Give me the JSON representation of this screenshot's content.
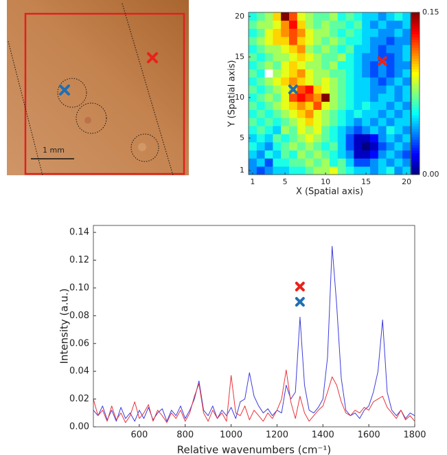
{
  "photo": {
    "scale_bar_label": "1 mm"
  },
  "chart_data": [
    {
      "type": "heatmap",
      "x_label": "X (Spatial axis)",
      "y_label": "Y (Spatial axis)",
      "xlim": [
        0.5,
        20.5
      ],
      "ylim": [
        0.5,
        20.5
      ],
      "xticks": [
        1,
        5,
        10,
        15,
        20
      ],
      "yticks": [
        1,
        5,
        10,
        15,
        20
      ],
      "clim": [
        0,
        0.15
      ],
      "cticks": [
        {
          "value": 0,
          "label": "0.00"
        },
        {
          "value": 0.15,
          "label": "0.15"
        }
      ],
      "colormap": "jet",
      "z": [
        [
          0.04,
          0.03,
          0.04,
          0.05,
          0.05,
          0.06,
          0.06,
          0.07,
          0.08,
          0.08,
          0.09,
          0.07,
          0.06,
          0.05,
          0.05,
          0.04,
          0.05,
          0.06,
          0.04,
          0.05
        ],
        [
          0.04,
          0.05,
          0.03,
          0.06,
          0.06,
          0.07,
          0.07,
          0.08,
          0.07,
          0.08,
          0.06,
          0.07,
          0.05,
          0.03,
          0.03,
          0.04,
          0.05,
          0.04,
          0.05,
          0.04
        ],
        [
          0.05,
          0.04,
          0.06,
          0.05,
          0.07,
          0.06,
          0.08,
          0.07,
          0.08,
          0.07,
          0.06,
          0.05,
          0.04,
          0.01,
          0.01,
          0.02,
          0.04,
          0.05,
          0.04,
          0.03
        ],
        [
          0.06,
          0.05,
          0.04,
          0.06,
          0.07,
          0.08,
          0.07,
          0.08,
          0.07,
          0.06,
          0.07,
          0.05,
          0.03,
          0.01,
          0.0,
          0.01,
          0.03,
          0.04,
          0.05,
          0.04
        ],
        [
          0.05,
          0.06,
          0.05,
          0.07,
          0.06,
          0.07,
          0.08,
          0.09,
          0.08,
          0.07,
          0.06,
          0.05,
          0.03,
          0.01,
          0.01,
          0.02,
          0.04,
          0.05,
          0.04,
          0.05
        ],
        [
          0.06,
          0.07,
          0.06,
          0.05,
          0.08,
          0.07,
          0.09,
          0.08,
          0.09,
          0.07,
          0.06,
          0.05,
          0.04,
          0.03,
          0.04,
          0.05,
          0.04,
          0.06,
          0.05,
          0.04
        ],
        [
          0.07,
          0.06,
          0.07,
          0.06,
          0.07,
          0.08,
          0.09,
          0.1,
          0.09,
          0.08,
          0.07,
          0.06,
          0.05,
          0.04,
          0.05,
          0.04,
          0.05,
          0.04,
          0.05,
          0.05
        ],
        [
          0.06,
          0.07,
          0.06,
          0.07,
          0.08,
          0.09,
          0.1,
          0.11,
          0.09,
          0.08,
          0.07,
          0.06,
          0.05,
          0.06,
          0.05,
          0.05,
          0.04,
          0.05,
          0.04,
          0.05
        ],
        [
          0.07,
          0.06,
          0.07,
          0.08,
          0.09,
          0.1,
          0.11,
          0.1,
          0.12,
          0.09,
          0.08,
          0.07,
          0.06,
          0.05,
          0.06,
          0.05,
          0.05,
          0.04,
          0.05,
          0.04
        ],
        [
          0.06,
          0.07,
          0.08,
          0.07,
          0.09,
          0.12,
          0.13,
          0.12,
          0.11,
          0.15,
          0.08,
          0.07,
          0.06,
          0.05,
          0.05,
          0.04,
          0.05,
          0.05,
          0.04,
          0.05
        ],
        [
          0.07,
          0.06,
          0.07,
          0.08,
          0.09,
          0.1,
          0.12,
          0.13,
          0.1,
          0.09,
          0.08,
          0.07,
          0.06,
          0.05,
          0.05,
          0.04,
          0.04,
          0.05,
          0.04,
          0.05
        ],
        [
          0.06,
          0.07,
          0.08,
          0.09,
          0.1,
          0.11,
          0.1,
          0.09,
          0.08,
          0.09,
          0.08,
          0.07,
          0.06,
          0.05,
          0.05,
          0.04,
          0.03,
          0.04,
          0.05,
          0.04
        ],
        [
          0.07,
          0.06,
          null,
          0.08,
          0.09,
          0.1,
          0.11,
          0.09,
          0.08,
          0.08,
          0.07,
          0.07,
          0.06,
          0.05,
          0.04,
          0.03,
          0.04,
          0.03,
          0.04,
          0.05
        ],
        [
          0.06,
          0.07,
          0.08,
          0.07,
          0.09,
          0.1,
          0.09,
          0.08,
          0.08,
          0.07,
          0.08,
          0.06,
          0.06,
          0.05,
          0.04,
          0.03,
          0.04,
          0.03,
          0.04,
          0.04
        ],
        [
          0.07,
          0.06,
          0.07,
          0.08,
          0.08,
          0.09,
          0.1,
          0.09,
          0.08,
          0.07,
          0.07,
          0.08,
          0.06,
          0.05,
          0.04,
          0.04,
          0.03,
          0.03,
          0.04,
          0.05
        ],
        [
          0.06,
          0.07,
          0.08,
          0.08,
          0.09,
          0.1,
          0.11,
          0.08,
          0.07,
          0.08,
          0.07,
          0.06,
          0.07,
          0.05,
          0.05,
          0.04,
          0.03,
          0.04,
          0.04,
          0.05
        ],
        [
          0.07,
          0.08,
          0.09,
          0.1,
          0.1,
          0.12,
          0.1,
          0.09,
          0.08,
          0.07,
          0.08,
          0.07,
          0.06,
          0.06,
          0.05,
          0.04,
          0.04,
          0.03,
          0.04,
          0.04
        ],
        [
          0.06,
          0.07,
          0.09,
          0.1,
          0.11,
          0.12,
          0.11,
          0.09,
          0.08,
          0.08,
          0.07,
          0.06,
          0.07,
          0.06,
          0.05,
          0.05,
          0.04,
          0.04,
          0.05,
          0.04
        ],
        [
          0.07,
          0.08,
          0.08,
          0.09,
          0.11,
          0.13,
          0.1,
          0.08,
          0.07,
          0.08,
          0.07,
          0.07,
          0.06,
          0.07,
          0.05,
          0.04,
          0.05,
          0.04,
          0.04,
          0.05
        ],
        [
          0.06,
          0.07,
          0.08,
          0.1,
          0.15,
          0.12,
          0.09,
          0.08,
          0.07,
          0.07,
          0.08,
          0.06,
          0.07,
          0.06,
          0.05,
          0.05,
          0.04,
          0.05,
          0.06,
          0.05
        ]
      ],
      "markers": [
        {
          "x": 17,
          "y": 14.5,
          "color": "#e8221b"
        },
        {
          "x": 6,
          "y": 11,
          "color": "#1f6fb4"
        }
      ]
    },
    {
      "type": "line",
      "x_label": "Relative wavenumbers (cm⁻¹)",
      "y_label": "Intensity (a.u.)",
      "xlim": [
        400,
        1800
      ],
      "ylim": [
        0,
        0.145
      ],
      "xticks": [
        600,
        800,
        1000,
        1200,
        1400,
        1600,
        1800
      ],
      "yticks": [
        {
          "value": 0,
          "label": "0.00"
        },
        {
          "value": 0.02,
          "label": "0.02"
        },
        {
          "value": 0.04,
          "label": "0.04"
        },
        {
          "value": 0.06,
          "label": "0.06"
        },
        {
          "value": 0.08,
          "label": "0.08"
        },
        {
          "value": 0.1,
          "label": "0.10"
        },
        {
          "value": 0.12,
          "label": "0.12"
        },
        {
          "value": 0.14,
          "label": "0.14"
        }
      ],
      "x": [
        400,
        420,
        440,
        460,
        480,
        500,
        520,
        540,
        560,
        580,
        600,
        620,
        640,
        660,
        680,
        700,
        720,
        740,
        760,
        780,
        800,
        820,
        840,
        860,
        880,
        900,
        920,
        940,
        960,
        980,
        1000,
        1020,
        1040,
        1060,
        1080,
        1100,
        1120,
        1140,
        1160,
        1180,
        1200,
        1220,
        1240,
        1260,
        1280,
        1300,
        1320,
        1340,
        1360,
        1380,
        1400,
        1420,
        1440,
        1460,
        1480,
        1500,
        1520,
        1540,
        1560,
        1580,
        1600,
        1620,
        1640,
        1660,
        1680,
        1700,
        1720,
        1740,
        1760,
        1780,
        1800
      ],
      "series": [
        {
          "color": "#3b3bdb",
          "values": [
            0.012,
            0.008,
            0.015,
            0.005,
            0.012,
            0.004,
            0.014,
            0.006,
            0.01,
            0.004,
            0.012,
            0.006,
            0.014,
            0.005,
            0.01,
            0.013,
            0.004,
            0.012,
            0.008,
            0.015,
            0.006,
            0.012,
            0.02,
            0.033,
            0.012,
            0.008,
            0.015,
            0.006,
            0.012,
            0.008,
            0.014,
            0.006,
            0.018,
            0.02,
            0.039,
            0.022,
            0.015,
            0.01,
            0.013,
            0.008,
            0.012,
            0.01,
            0.03,
            0.02,
            0.025,
            0.079,
            0.03,
            0.012,
            0.01,
            0.014,
            0.02,
            0.05,
            0.13,
            0.088,
            0.035,
            0.012,
            0.008,
            0.01,
            0.006,
            0.012,
            0.015,
            0.025,
            0.04,
            0.077,
            0.025,
            0.012,
            0.008,
            0.012,
            0.006,
            0.01,
            0.008
          ]
        },
        {
          "color": "#e8333a",
          "values": [
            0.02,
            0.008,
            0.012,
            0.004,
            0.015,
            0.005,
            0.01,
            0.003,
            0.008,
            0.018,
            0.006,
            0.01,
            0.016,
            0.004,
            0.012,
            0.008,
            0.003,
            0.01,
            0.006,
            0.012,
            0.004,
            0.01,
            0.022,
            0.031,
            0.01,
            0.004,
            0.012,
            0.006,
            0.01,
            0.004,
            0.037,
            0.01,
            0.008,
            0.015,
            0.005,
            0.012,
            0.008,
            0.004,
            0.01,
            0.006,
            0.012,
            0.02,
            0.041,
            0.018,
            0.006,
            0.022,
            0.01,
            0.004,
            0.008,
            0.012,
            0.015,
            0.025,
            0.036,
            0.03,
            0.018,
            0.01,
            0.008,
            0.012,
            0.01,
            0.014,
            0.012,
            0.018,
            0.02,
            0.022,
            0.014,
            0.01,
            0.006,
            0.012,
            0.005,
            0.008,
            0.004
          ]
        }
      ],
      "markers": [
        {
          "x": 1300,
          "y": 0.101,
          "color": "#e8221b"
        },
        {
          "x": 1300,
          "y": 0.09,
          "color": "#1f6fb4"
        }
      ]
    }
  ]
}
